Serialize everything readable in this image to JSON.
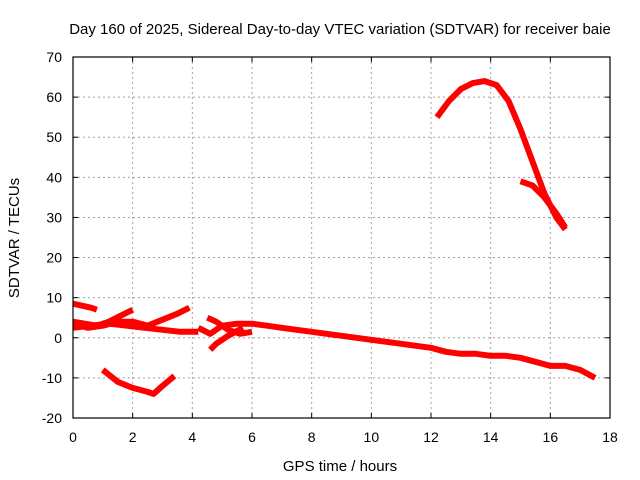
{
  "chart_data": {
    "type": "line",
    "title": "Day 160 of 2025, Sidereal Day-to-day VTEC variation (SDTVAR) for receiver baie",
    "xlabel": "GPS time / hours",
    "ylabel": "SDTVAR / TECUs",
    "xlim": [
      0,
      18
    ],
    "ylim": [
      -20,
      70
    ],
    "xticks": [
      0,
      2,
      4,
      6,
      8,
      10,
      12,
      14,
      16,
      18
    ],
    "yticks": [
      -20,
      -10,
      0,
      10,
      20,
      30,
      40,
      50,
      60,
      70
    ],
    "grid": true,
    "legend": "none",
    "color": "#ff0000",
    "series": [
      {
        "name": "trace-1",
        "x": [
          0.0,
          0.3,
          0.6,
          0.8
        ],
        "y": [
          8.5,
          8.0,
          7.5,
          7.0
        ]
      },
      {
        "name": "trace-2",
        "x": [
          0.0,
          0.4,
          0.8,
          1.2,
          1.6,
          2.0
        ],
        "y": [
          4.0,
          3.5,
          3.0,
          4.0,
          5.5,
          7.0
        ]
      },
      {
        "name": "trace-3",
        "x": [
          0.0,
          0.5,
          1.0,
          1.5,
          2.0,
          2.5,
          3.0,
          3.5,
          3.9
        ],
        "y": [
          3.5,
          2.5,
          3.0,
          4.0,
          4.0,
          3.0,
          4.5,
          6.0,
          7.5
        ]
      },
      {
        "name": "trace-4",
        "x": [
          0.0,
          0.6,
          1.2,
          1.8,
          2.4,
          3.0,
          3.6,
          4.2
        ],
        "y": [
          2.5,
          3.0,
          3.5,
          3.0,
          2.5,
          2.0,
          1.5,
          1.5
        ]
      },
      {
        "name": "trace-5",
        "x": [
          1.0,
          1.5,
          2.0,
          2.5,
          2.7,
          3.0,
          3.4
        ],
        "y": [
          -8.0,
          -11.0,
          -12.5,
          -13.5,
          -14.0,
          -12.0,
          -9.5
        ]
      },
      {
        "name": "trace-6",
        "x": [
          4.2,
          4.6,
          5.0,
          5.5,
          6.0,
          6.5,
          7.0,
          7.5,
          8.0,
          8.5,
          9.0,
          9.5,
          10.0,
          10.5,
          11.0,
          11.5,
          12.0,
          12.5,
          13.0,
          13.5,
          14.0,
          14.5,
          15.0,
          15.5,
          16.0,
          16.5,
          17.0,
          17.5
        ],
        "y": [
          2.5,
          1.0,
          3.0,
          3.5,
          3.5,
          3.0,
          2.5,
          2.0,
          1.5,
          1.0,
          0.5,
          0.0,
          -0.5,
          -1.0,
          -1.5,
          -2.0,
          -2.5,
          -3.5,
          -4.0,
          -4.0,
          -4.5,
          -4.5,
          -5.0,
          -6.0,
          -7.0,
          -7.0,
          -8.0,
          -10.0
        ]
      },
      {
        "name": "trace-7",
        "x": [
          4.5,
          4.8,
          5.2,
          5.6,
          6.0
        ],
        "y": [
          5.0,
          4.0,
          2.0,
          1.0,
          1.5
        ]
      },
      {
        "name": "trace-8",
        "x": [
          4.6,
          4.8,
          5.2,
          5.7
        ],
        "y": [
          -3.0,
          -1.5,
          0.5,
          2.5
        ]
      },
      {
        "name": "trace-9",
        "x": [
          12.2,
          12.6,
          13.0,
          13.4,
          13.8,
          14.2,
          14.6,
          15.0,
          15.4,
          15.8,
          16.2,
          16.5
        ],
        "y": [
          55.0,
          59.0,
          62.0,
          63.5,
          64.0,
          63.0,
          59.0,
          52.0,
          44.0,
          36.0,
          30.0,
          27.0
        ]
      },
      {
        "name": "trace-10",
        "x": [
          15.0,
          15.4,
          15.8,
          16.2,
          16.5
        ],
        "y": [
          39.0,
          38.0,
          35.0,
          31.0,
          27.5
        ]
      }
    ]
  }
}
